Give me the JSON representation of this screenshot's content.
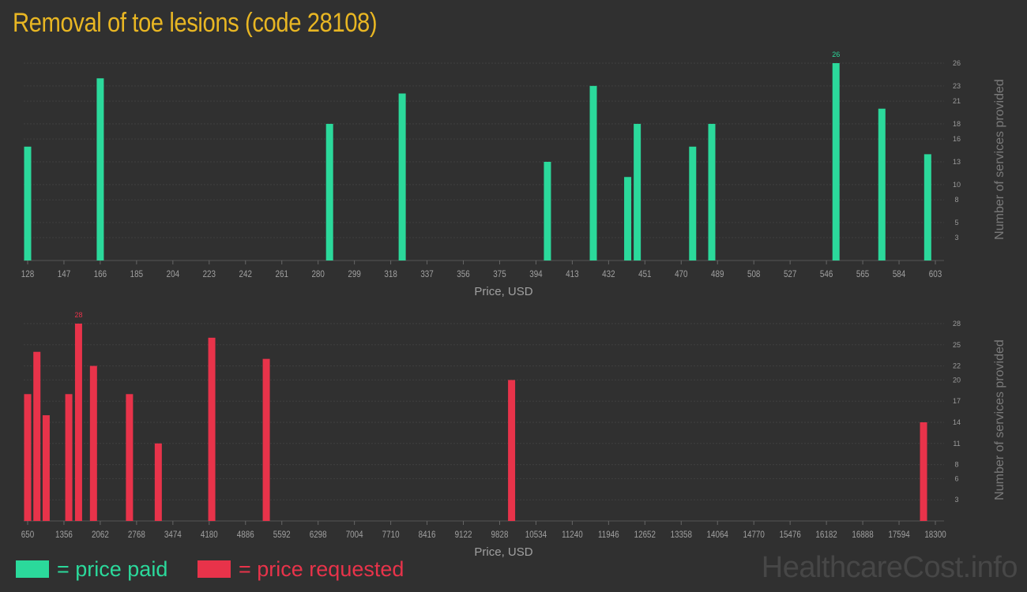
{
  "title": "Removal of toe lesions (code 28108)",
  "colors": {
    "paid": "#2bd99b",
    "requested": "#e8334a",
    "title": "#e8b623"
  },
  "chart_data": [
    {
      "type": "bar",
      "name": "price paid",
      "xlabel": "Price, USD",
      "ylabel": "Number of services provided",
      "x_ticks": [
        128,
        147,
        166,
        185,
        204,
        223,
        242,
        261,
        280,
        299,
        318,
        337,
        356,
        375,
        394,
        413,
        432,
        451,
        470,
        489,
        508,
        527,
        546,
        565,
        584,
        603
      ],
      "xlim": [
        128,
        603
      ],
      "y_ticks": [
        3,
        5,
        8,
        10,
        13,
        16,
        18,
        21,
        23,
        26
      ],
      "ylim": [
        0,
        26
      ],
      "max_label": "26",
      "bars": [
        {
          "x": 128,
          "y": 15
        },
        {
          "x": 166,
          "y": 24
        },
        {
          "x": 286,
          "y": 18
        },
        {
          "x": 324,
          "y": 22
        },
        {
          "x": 400,
          "y": 13
        },
        {
          "x": 424,
          "y": 23
        },
        {
          "x": 442,
          "y": 11
        },
        {
          "x": 447,
          "y": 18
        },
        {
          "x": 476,
          "y": 15
        },
        {
          "x": 486,
          "y": 18
        },
        {
          "x": 551,
          "y": 26
        },
        {
          "x": 575,
          "y": 20
        },
        {
          "x": 599,
          "y": 14
        }
      ]
    },
    {
      "type": "bar",
      "name": "price requested",
      "xlabel": "Price, USD",
      "ylabel": "Number of services provided",
      "x_ticks": [
        650,
        1356,
        2062,
        2768,
        3474,
        4180,
        4886,
        5592,
        6298,
        7004,
        7710,
        8416,
        9122,
        9828,
        10534,
        11240,
        11946,
        12652,
        13358,
        14064,
        14770,
        15476,
        16182,
        16888,
        17594,
        18300
      ],
      "xlim": [
        650,
        18300
      ],
      "y_ticks": [
        3,
        6,
        8,
        11,
        14,
        17,
        20,
        22,
        25,
        28
      ],
      "ylim": [
        0,
        28
      ],
      "max_label": "28",
      "bars": [
        {
          "x": 650,
          "y": 18
        },
        {
          "x": 830,
          "y": 24
        },
        {
          "x": 1010,
          "y": 15
        },
        {
          "x": 1450,
          "y": 18
        },
        {
          "x": 1640,
          "y": 28
        },
        {
          "x": 1930,
          "y": 22
        },
        {
          "x": 2630,
          "y": 18
        },
        {
          "x": 3190,
          "y": 11
        },
        {
          "x": 4230,
          "y": 26
        },
        {
          "x": 5290,
          "y": 23
        },
        {
          "x": 10060,
          "y": 20
        },
        {
          "x": 18070,
          "y": 14
        }
      ]
    }
  ],
  "legend": {
    "paid": "= price paid",
    "requested": "= price requested"
  },
  "watermark": "HealthcareCost.info"
}
